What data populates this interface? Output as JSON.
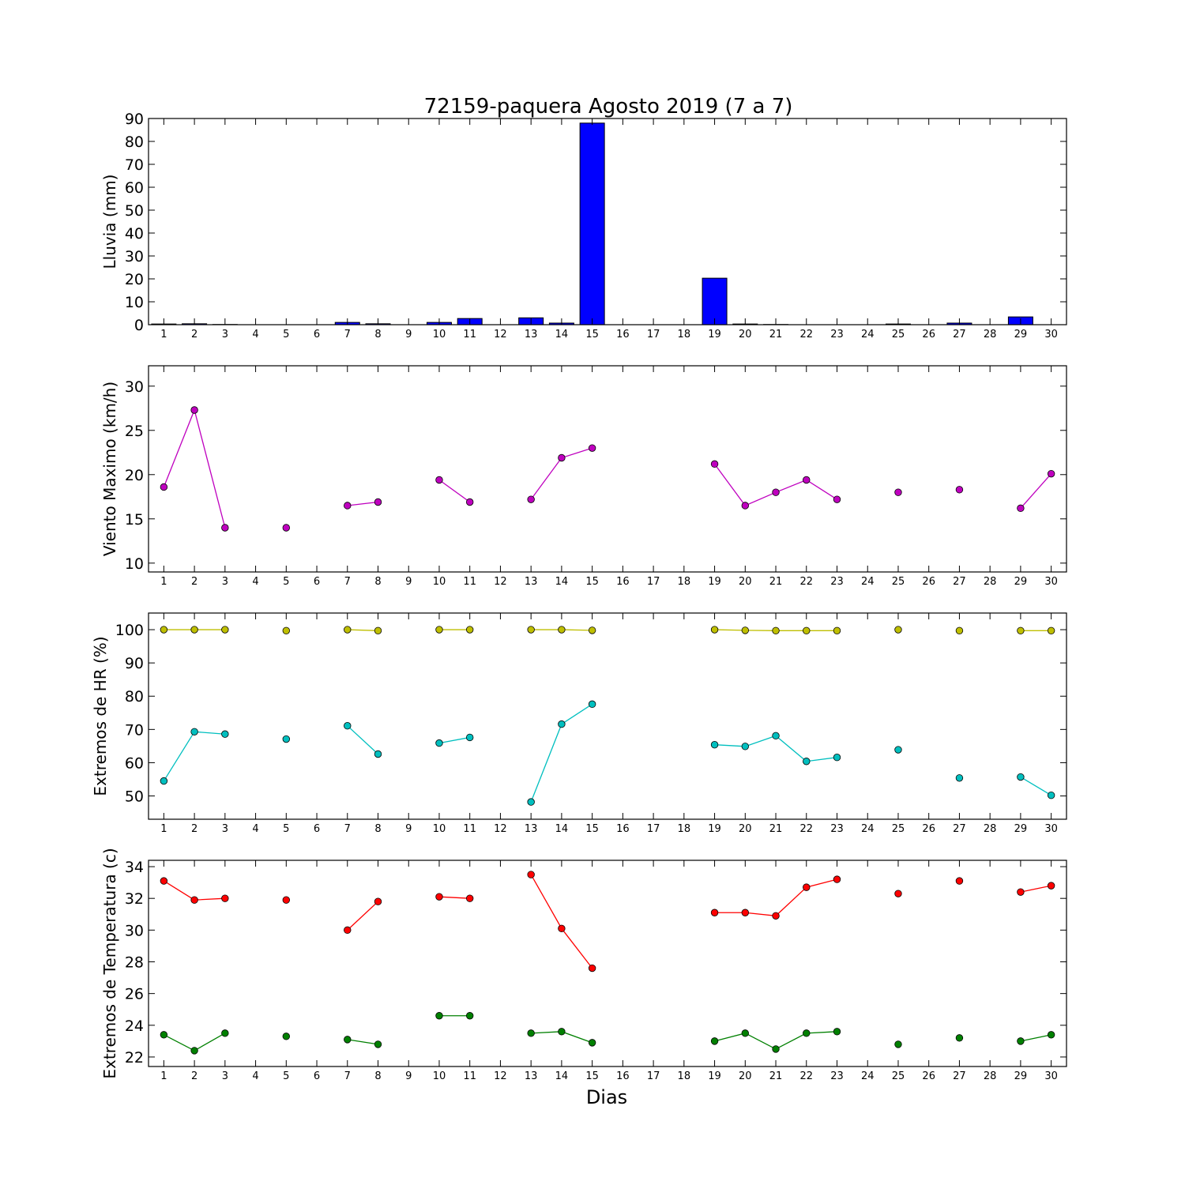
{
  "title": "72159-paquera Agosto 2019  (7 a 7)",
  "xlabel": "Dias",
  "x_ticks": [
    "1",
    "2",
    "3",
    "4",
    "5",
    "6",
    "7",
    "8",
    "9",
    "10",
    "11",
    "12",
    "13",
    "14",
    "15",
    "16",
    "17",
    "18",
    "19",
    "20",
    "21",
    "22",
    "23",
    "24",
    "25",
    "26",
    "27",
    "28",
    "29",
    "30"
  ],
  "chart_data": [
    {
      "type": "bar",
      "ylabel": "Lluvia (mm)",
      "x": [
        1,
        2,
        3,
        4,
        5,
        6,
        7,
        8,
        9,
        10,
        11,
        12,
        13,
        14,
        15,
        16,
        17,
        18,
        19,
        20,
        21,
        22,
        23,
        24,
        25,
        26,
        27,
        28,
        29,
        30
      ],
      "values": [
        0.3,
        0.4,
        0.1,
        0,
        0,
        0,
        1.0,
        0.4,
        0,
        1.0,
        2.7,
        0,
        3.0,
        0.7,
        88.0,
        0,
        0,
        0,
        20.3,
        0.3,
        0.1,
        0,
        0,
        0,
        0.3,
        0,
        0.7,
        0,
        3.4,
        0
      ],
      "color": "#0000ff",
      "ylim": [
        0,
        90
      ],
      "yticks": [
        0,
        10,
        20,
        30,
        40,
        50,
        60,
        70,
        80,
        90
      ],
      "xlim": [
        0.5,
        30.5
      ]
    },
    {
      "type": "line",
      "ylabel": "Viento Maximo (km/h)",
      "series": [
        {
          "color": "#bf00bf",
          "x": [
            1,
            2,
            3,
            4,
            5,
            6,
            7,
            8,
            9,
            10,
            11,
            12,
            13,
            14,
            15,
            16,
            17,
            18,
            19,
            20,
            21,
            22,
            23,
            24,
            25,
            26,
            27,
            28,
            29,
            30
          ],
          "y": [
            18.6,
            27.3,
            14.0,
            null,
            14.0,
            null,
            16.5,
            16.9,
            null,
            19.4,
            16.9,
            null,
            17.2,
            21.9,
            23.0,
            null,
            null,
            null,
            21.2,
            16.5,
            18.0,
            19.4,
            17.2,
            null,
            18.0,
            null,
            18.3,
            null,
            16.2,
            20.1
          ]
        }
      ],
      "ylim": [
        9,
        32.3
      ],
      "yticks": [
        10,
        15,
        20,
        25,
        30
      ],
      "xlim": [
        0.5,
        30.5
      ]
    },
    {
      "type": "line",
      "ylabel": "Extremos de HR (%)",
      "series": [
        {
          "color": "#bfbf00",
          "x": [
            1,
            2,
            3,
            4,
            5,
            6,
            7,
            8,
            9,
            10,
            11,
            12,
            13,
            14,
            15,
            16,
            17,
            18,
            19,
            20,
            21,
            22,
            23,
            24,
            25,
            26,
            27,
            28,
            29,
            30
          ],
          "y": [
            100,
            100,
            100,
            null,
            99.7,
            null,
            100,
            99.7,
            null,
            100,
            100,
            null,
            100,
            100,
            99.8,
            null,
            null,
            null,
            100,
            99.8,
            99.7,
            99.7,
            99.7,
            null,
            100,
            null,
            99.7,
            null,
            99.7,
            99.7
          ]
        },
        {
          "color": "#00bfbf",
          "x": [
            1,
            2,
            3,
            4,
            5,
            6,
            7,
            8,
            9,
            10,
            11,
            12,
            13,
            14,
            15,
            16,
            17,
            18,
            19,
            20,
            21,
            22,
            23,
            24,
            25,
            26,
            27,
            28,
            29,
            30
          ],
          "y": [
            54.5,
            69.3,
            68.6,
            null,
            67.1,
            null,
            71.1,
            62.6,
            null,
            65.9,
            67.6,
            null,
            48.2,
            71.6,
            77.6,
            null,
            null,
            null,
            65.4,
            64.9,
            68.1,
            60.4,
            61.6,
            null,
            63.9,
            null,
            55.4,
            null,
            55.7,
            50.2
          ]
        }
      ],
      "ylim": [
        43,
        105
      ],
      "yticks": [
        50,
        60,
        70,
        80,
        90,
        100
      ],
      "xlim": [
        0.5,
        30.5
      ]
    },
    {
      "type": "line",
      "ylabel": "Extremos de Temperatura (c)",
      "series": [
        {
          "color": "#ff0000",
          "x": [
            1,
            2,
            3,
            4,
            5,
            6,
            7,
            8,
            9,
            10,
            11,
            12,
            13,
            14,
            15,
            16,
            17,
            18,
            19,
            20,
            21,
            22,
            23,
            24,
            25,
            26,
            27,
            28,
            29,
            30
          ],
          "y": [
            33.1,
            31.9,
            32.0,
            null,
            31.9,
            null,
            30.0,
            31.8,
            null,
            32.1,
            32.0,
            null,
            33.5,
            30.1,
            27.6,
            null,
            null,
            null,
            31.1,
            31.1,
            30.9,
            32.7,
            33.2,
            null,
            32.3,
            null,
            33.1,
            null,
            32.4,
            32.8
          ]
        },
        {
          "color": "#008000",
          "x": [
            1,
            2,
            3,
            4,
            5,
            6,
            7,
            8,
            9,
            10,
            11,
            12,
            13,
            14,
            15,
            16,
            17,
            18,
            19,
            20,
            21,
            22,
            23,
            24,
            25,
            26,
            27,
            28,
            29,
            30
          ],
          "y": [
            23.4,
            22.4,
            23.5,
            null,
            23.3,
            null,
            23.1,
            22.8,
            null,
            24.6,
            24.6,
            null,
            23.5,
            23.6,
            22.9,
            null,
            null,
            null,
            23.0,
            23.5,
            22.5,
            23.5,
            23.6,
            null,
            22.8,
            null,
            23.2,
            null,
            23.0,
            23.4
          ]
        }
      ],
      "ylim": [
        21.4,
        34.4
      ],
      "yticks": [
        22,
        24,
        26,
        28,
        30,
        32,
        34
      ],
      "xlim": [
        0.5,
        30.5
      ]
    }
  ]
}
